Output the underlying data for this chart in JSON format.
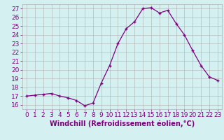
{
  "x": [
    0,
    1,
    2,
    3,
    4,
    5,
    6,
    7,
    8,
    9,
    10,
    11,
    12,
    13,
    14,
    15,
    16,
    17,
    18,
    19,
    20,
    21,
    22,
    23
  ],
  "y": [
    17.0,
    17.1,
    17.2,
    17.3,
    17.0,
    16.8,
    16.5,
    15.9,
    16.2,
    18.5,
    20.5,
    23.0,
    24.7,
    25.5,
    27.0,
    27.1,
    26.5,
    26.8,
    25.3,
    24.0,
    22.2,
    20.5,
    19.2,
    18.8
  ],
  "xlabel": "Windchill (Refroidissement éolien,°C)",
  "ylim": [
    15.5,
    27.5
  ],
  "xlim": [
    -0.5,
    23.5
  ],
  "yticks": [
    16,
    17,
    18,
    19,
    20,
    21,
    22,
    23,
    24,
    25,
    26,
    27
  ],
  "xticks": [
    0,
    1,
    2,
    3,
    4,
    5,
    6,
    7,
    8,
    9,
    10,
    11,
    12,
    13,
    14,
    15,
    16,
    17,
    18,
    19,
    20,
    21,
    22,
    23
  ],
  "line_color": "#800080",
  "marker": "+",
  "bg_color": "#d4f0f0",
  "grid_color": "#b0b0b0",
  "tick_label_color": "#800080",
  "xlabel_color": "#800080",
  "tick_font_size": 6.5,
  "xlabel_font_size": 7.0
}
